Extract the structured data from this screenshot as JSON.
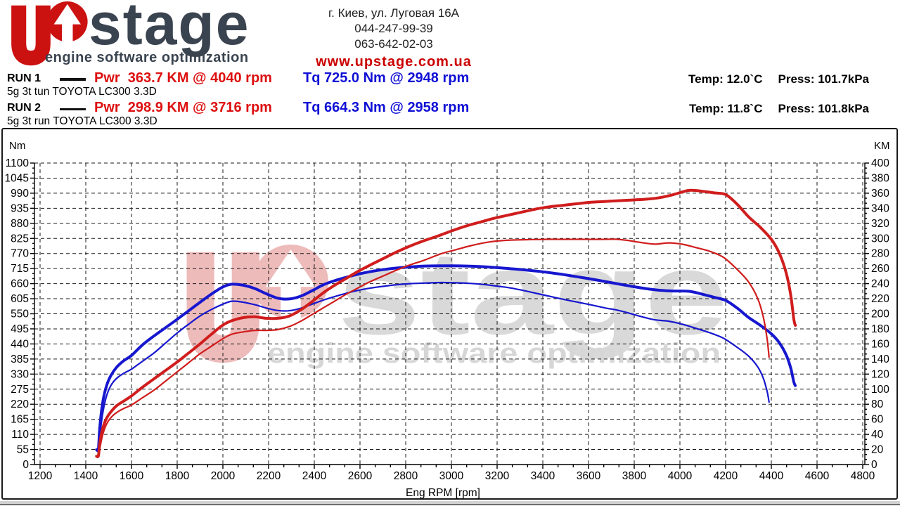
{
  "header": {
    "logo": {
      "mark": "up-arrow-logo",
      "brand_text": "stage",
      "tagline": "engine software optimization",
      "brand_color": "#cc1111",
      "dark_color": "#3a4450"
    },
    "address": "г. Киев, ул. Луговая 16А",
    "phone1": "044-247-99-39",
    "phone2": "063-642-02-03",
    "website": "www.upstage.com.ua",
    "website_color": "#cc0000"
  },
  "runs": [
    {
      "label": "RUN 1",
      "power_result": "Pwr  363.7 KM @ 4040 rpm",
      "torque_result": "Tq 725.0 Nm @ 2948 rpm",
      "temp": "Temp: 12.0`C",
      "press": "Press: 101.7kPa",
      "description": "5g 3t tun TOYOTA LC300 3.3D"
    },
    {
      "label": "RUN 2",
      "power_result": "Pwr  298.9 KM @ 3716 rpm",
      "torque_result": "Tq 664.3 Nm @ 2958 rpm",
      "temp": "Temp: 11.8`C",
      "press": "Press: 101.8kPa",
      "description": "5g 3t run TOYOTA LC300 3.3D"
    }
  ],
  "colors": {
    "accent_red": "#dd0f0f",
    "accent_blue": "#0f0fd6",
    "curve_red": "#d01d1d",
    "curve_blue": "#1717cf",
    "watermark_red": "#eebbbb",
    "watermark_gray": "#d9d9d9"
  },
  "watermark": {
    "brand_text": "stage",
    "tagline": "engine software optimization"
  },
  "chart_data": {
    "type": "line",
    "title": "",
    "xlabel": "Eng RPM [rpm]",
    "grid": true,
    "legend": "none",
    "x_axis": {
      "min": 1200,
      "max": 4800,
      "step": 200
    },
    "y_left": {
      "label": "Nm",
      "min": 0,
      "max": 1100,
      "step": 55
    },
    "y_right": {
      "label": "KM",
      "min": 0,
      "max": 400,
      "step": 20
    },
    "series": [
      {
        "name": "RUN 2 torque (Nm)",
        "axis": "left",
        "color": "#1717cf",
        "width": 2.2,
        "points": [
          [
            1450,
            57
          ],
          [
            1458,
            59
          ],
          [
            1463,
            115
          ],
          [
            1472,
            175
          ],
          [
            1483,
            225
          ],
          [
            1497,
            265
          ],
          [
            1515,
            295
          ],
          [
            1540,
            318
          ],
          [
            1570,
            335
          ],
          [
            1600,
            348
          ],
          [
            1650,
            378
          ],
          [
            1700,
            408
          ],
          [
            1750,
            444
          ],
          [
            1800,
            480
          ],
          [
            1850,
            512
          ],
          [
            1900,
            542
          ],
          [
            1950,
            566
          ],
          [
            2000,
            585
          ],
          [
            2040,
            596
          ],
          [
            2090,
            592
          ],
          [
            2140,
            583
          ],
          [
            2190,
            571
          ],
          [
            2240,
            562
          ],
          [
            2290,
            561
          ],
          [
            2340,
            570
          ],
          [
            2390,
            585
          ],
          [
            2440,
            600
          ],
          [
            2490,
            613
          ],
          [
            2540,
            625
          ],
          [
            2590,
            635
          ],
          [
            2640,
            643
          ],
          [
            2700,
            650
          ],
          [
            2760,
            656
          ],
          [
            2820,
            660
          ],
          [
            2880,
            662
          ],
          [
            2958,
            664
          ],
          [
            3020,
            663
          ],
          [
            3080,
            661
          ],
          [
            3140,
            657
          ],
          [
            3200,
            651
          ],
          [
            3260,
            644
          ],
          [
            3320,
            634
          ],
          [
            3380,
            623
          ],
          [
            3440,
            612
          ],
          [
            3500,
            601
          ],
          [
            3560,
            591
          ],
          [
            3620,
            581
          ],
          [
            3680,
            570
          ],
          [
            3716,
            565
          ],
          [
            3770,
            554
          ],
          [
            3830,
            540
          ],
          [
            3890,
            528
          ],
          [
            3950,
            523
          ],
          [
            4010,
            512
          ],
          [
            4070,
            497
          ],
          [
            4130,
            481
          ],
          [
            4190,
            461
          ],
          [
            4250,
            428
          ],
          [
            4300,
            396
          ],
          [
            4340,
            357
          ],
          [
            4365,
            315
          ],
          [
            4382,
            265
          ],
          [
            4390,
            228
          ]
        ]
      },
      {
        "name": "RUN 1 torque (Nm)",
        "axis": "left",
        "color": "#1717cf",
        "width": 4,
        "points": [
          [
            1447,
            54
          ],
          [
            1455,
            56
          ],
          [
            1460,
            120
          ],
          [
            1468,
            190
          ],
          [
            1478,
            245
          ],
          [
            1492,
            290
          ],
          [
            1510,
            325
          ],
          [
            1535,
            355
          ],
          [
            1565,
            378
          ],
          [
            1600,
            398
          ],
          [
            1650,
            438
          ],
          [
            1700,
            470
          ],
          [
            1750,
            500
          ],
          [
            1800,
            530
          ],
          [
            1850,
            561
          ],
          [
            1900,
            592
          ],
          [
            1950,
            622
          ],
          [
            2000,
            648
          ],
          [
            2040,
            658
          ],
          [
            2090,
            654
          ],
          [
            2140,
            642
          ],
          [
            2190,
            623
          ],
          [
            2240,
            607
          ],
          [
            2290,
            604
          ],
          [
            2340,
            614
          ],
          [
            2390,
            634
          ],
          [
            2440,
            656
          ],
          [
            2490,
            671
          ],
          [
            2540,
            683
          ],
          [
            2590,
            694
          ],
          [
            2640,
            703
          ],
          [
            2700,
            711
          ],
          [
            2760,
            717
          ],
          [
            2820,
            721
          ],
          [
            2880,
            724
          ],
          [
            2948,
            725
          ],
          [
            3010,
            725
          ],
          [
            3070,
            724
          ],
          [
            3130,
            722
          ],
          [
            3190,
            719
          ],
          [
            3250,
            715
          ],
          [
            3310,
            711
          ],
          [
            3370,
            706
          ],
          [
            3430,
            700
          ],
          [
            3490,
            693
          ],
          [
            3550,
            685
          ],
          [
            3610,
            677
          ],
          [
            3670,
            668
          ],
          [
            3730,
            659
          ],
          [
            3790,
            650
          ],
          [
            3850,
            642
          ],
          [
            3910,
            636
          ],
          [
            3970,
            633
          ],
          [
            4040,
            632
          ],
          [
            4100,
            621
          ],
          [
            4150,
            610
          ],
          [
            4200,
            599
          ],
          [
            4250,
            571
          ],
          [
            4300,
            537
          ],
          [
            4350,
            509
          ],
          [
            4400,
            477
          ],
          [
            4435,
            444
          ],
          [
            4465,
            400
          ],
          [
            4485,
            352
          ],
          [
            4498,
            302
          ],
          [
            4505,
            288
          ]
        ]
      },
      {
        "name": "RUN 2 power (KM)",
        "axis": "right",
        "color": "#d01d1d",
        "width": 2.2,
        "points": [
          [
            1452,
            11.8
          ],
          [
            1458,
            12
          ],
          [
            1463,
            24
          ],
          [
            1472,
            37
          ],
          [
            1483,
            48
          ],
          [
            1497,
            57
          ],
          [
            1515,
            64
          ],
          [
            1540,
            70
          ],
          [
            1570,
            75
          ],
          [
            1600,
            79
          ],
          [
            1650,
            89
          ],
          [
            1700,
            99
          ],
          [
            1750,
            111
          ],
          [
            1800,
            123
          ],
          [
            1850,
            135
          ],
          [
            1900,
            147
          ],
          [
            1950,
            157
          ],
          [
            2000,
            167
          ],
          [
            2040,
            173
          ],
          [
            2090,
            176
          ],
          [
            2140,
            178
          ],
          [
            2190,
            178
          ],
          [
            2240,
            179
          ],
          [
            2290,
            183
          ],
          [
            2340,
            190
          ],
          [
            2390,
            199
          ],
          [
            2440,
            208
          ],
          [
            2490,
            217
          ],
          [
            2540,
            226
          ],
          [
            2590,
            234
          ],
          [
            2640,
            242
          ],
          [
            2700,
            250
          ],
          [
            2760,
            258
          ],
          [
            2820,
            265
          ],
          [
            2880,
            271
          ],
          [
            2958,
            280
          ],
          [
            3020,
            285
          ],
          [
            3080,
            290
          ],
          [
            3140,
            294
          ],
          [
            3200,
            296.6
          ],
          [
            3260,
            297.8
          ],
          [
            3320,
            298.3
          ],
          [
            3380,
            298.6
          ],
          [
            3440,
            298.8
          ],
          [
            3500,
            298.7
          ],
          [
            3560,
            298.8
          ],
          [
            3620,
            298.7
          ],
          [
            3680,
            298.8
          ],
          [
            3716,
            298.9
          ],
          [
            3770,
            297.4
          ],
          [
            3830,
            294.5
          ],
          [
            3890,
            292.4
          ],
          [
            3950,
            294.1
          ],
          [
            4010,
            292.3
          ],
          [
            4070,
            287.8
          ],
          [
            4130,
            283
          ],
          [
            4190,
            275
          ],
          [
            4250,
            259
          ],
          [
            4300,
            242.4
          ],
          [
            4340,
            220.6
          ],
          [
            4365,
            195.7
          ],
          [
            4382,
            165.4
          ],
          [
            4390,
            142.5
          ]
        ]
      },
      {
        "name": "RUN 1 power (KM)",
        "axis": "right",
        "color": "#d01d1d",
        "width": 4,
        "points": [
          [
            1447,
            11
          ],
          [
            1455,
            11.5
          ],
          [
            1460,
            25
          ],
          [
            1468,
            40
          ],
          [
            1478,
            52
          ],
          [
            1492,
            62
          ],
          [
            1510,
            70
          ],
          [
            1535,
            78
          ],
          [
            1565,
            84
          ],
          [
            1600,
            91
          ],
          [
            1650,
            103
          ],
          [
            1700,
            114
          ],
          [
            1750,
            125
          ],
          [
            1800,
            136
          ],
          [
            1850,
            148
          ],
          [
            1900,
            160
          ],
          [
            1950,
            173
          ],
          [
            2000,
            185
          ],
          [
            2040,
            191
          ],
          [
            2090,
            195
          ],
          [
            2140,
            196
          ],
          [
            2190,
            194
          ],
          [
            2240,
            194
          ],
          [
            2290,
            197
          ],
          [
            2340,
            205
          ],
          [
            2390,
            216
          ],
          [
            2440,
            228
          ],
          [
            2490,
            238
          ],
          [
            2540,
            247
          ],
          [
            2590,
            256
          ],
          [
            2640,
            264
          ],
          [
            2700,
            273
          ],
          [
            2760,
            282
          ],
          [
            2820,
            290
          ],
          [
            2880,
            297
          ],
          [
            2948,
            304
          ],
          [
            3010,
            311
          ],
          [
            3070,
            317
          ],
          [
            3130,
            322
          ],
          [
            3190,
            327
          ],
          [
            3250,
            331
          ],
          [
            3310,
            335
          ],
          [
            3370,
            339
          ],
          [
            3430,
            342
          ],
          [
            3490,
            344
          ],
          [
            3550,
            346
          ],
          [
            3610,
            348
          ],
          [
            3670,
            349
          ],
          [
            3730,
            350
          ],
          [
            3790,
            351
          ],
          [
            3850,
            352
          ],
          [
            3910,
            354
          ],
          [
            3970,
            358
          ],
          [
            4040,
            363.7
          ],
          [
            4100,
            362.5
          ],
          [
            4150,
            360.4
          ],
          [
            4200,
            358.2
          ],
          [
            4250,
            345.5
          ],
          [
            4300,
            328.8
          ],
          [
            4350,
            315.2
          ],
          [
            4400,
            298.8
          ],
          [
            4435,
            280.3
          ],
          [
            4465,
            254.3
          ],
          [
            4485,
            224.8
          ],
          [
            4498,
            193.4
          ],
          [
            4505,
            184.7
          ]
        ]
      }
    ]
  }
}
